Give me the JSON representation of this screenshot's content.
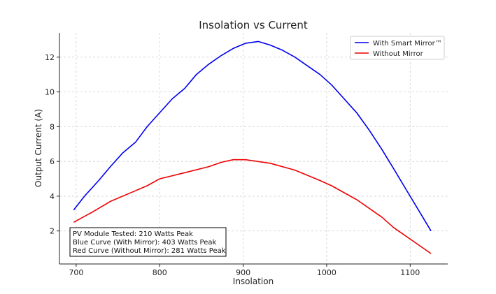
{
  "chart_data": {
    "type": "line",
    "title": "Insolation vs Current",
    "xlabel": "Insolation",
    "ylabel": "Output Current (A)",
    "xlim": [
      680,
      1145
    ],
    "ylim": [
      0.1,
      13.4
    ],
    "xticks": [
      700,
      800,
      900,
      1000,
      1100
    ],
    "yticks": [
      2,
      4,
      6,
      8,
      10,
      12
    ],
    "grid": true,
    "legend_position": "top-right",
    "series": [
      {
        "name": "With Smart Mirror™",
        "color": "#0000ee",
        "x": [
          697,
          710,
          727,
          741,
          756,
          771,
          785,
          800,
          815,
          830,
          844,
          859,
          874,
          888,
          903,
          918,
          932,
          947,
          962,
          977,
          992,
          1006,
          1021,
          1036,
          1051,
          1066,
          1080,
          1095,
          1110,
          1125
        ],
        "y": [
          3.2,
          4.0,
          4.9,
          5.7,
          6.5,
          7.1,
          8.0,
          8.8,
          9.6,
          10.2,
          11.0,
          11.6,
          12.1,
          12.5,
          12.8,
          12.9,
          12.7,
          12.4,
          12.0,
          11.5,
          11.0,
          10.4,
          9.6,
          8.8,
          7.8,
          6.7,
          5.6,
          4.4,
          3.2,
          2.0
        ]
      },
      {
        "name": "Without Mirror",
        "color": "#ee0000",
        "x": [
          697,
          720,
          741,
          763,
          785,
          800,
          830,
          859,
          874,
          888,
          903,
          932,
          962,
          992,
          1006,
          1036,
          1066,
          1080,
          1110,
          1125
        ],
        "y": [
          2.5,
          3.1,
          3.7,
          4.15,
          4.6,
          5.0,
          5.35,
          5.7,
          5.95,
          6.1,
          6.1,
          5.9,
          5.5,
          4.9,
          4.6,
          3.8,
          2.8,
          2.2,
          1.2,
          0.7
        ]
      }
    ],
    "annotation": {
      "lines": [
        "PV Module Tested: 210 Watts Peak",
        "Blue Curve (With Mirror): 403 Watts Peak",
        "Red Curve (Without Mirror): 281 Watts Peak"
      ],
      "position": "bottom-left"
    }
  }
}
